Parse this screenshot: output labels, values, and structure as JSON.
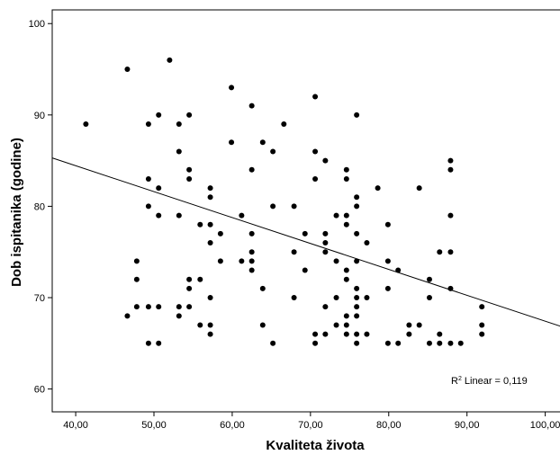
{
  "chart_data": {
    "type": "scatter",
    "title": "",
    "xlabel": "Kvaliteta života",
    "ylabel": "Dob ispitanika (godine)",
    "xlim": [
      37.0,
      102.0
    ],
    "ylim": [
      57.5,
      101.5
    ],
    "xticks": [
      40,
      50,
      60,
      70,
      80,
      90,
      100
    ],
    "xtick_labels": [
      "40,00",
      "50,00",
      "60,00",
      "70,00",
      "80,00",
      "90,00",
      "100,00"
    ],
    "yticks": [
      60,
      70,
      80,
      90,
      100
    ],
    "ytick_labels": [
      "60",
      "70",
      "80",
      "90",
      "100"
    ],
    "grid": false,
    "colors": {
      "points": "#000000",
      "line": "#000000",
      "axes": "#000000",
      "background": "#ffffff"
    },
    "fit_line": {
      "type": "linear",
      "intercept": 95.79,
      "slope": -0.2837
    },
    "annotation": {
      "r2_prefix": "R",
      "r2_sup": "2",
      "r2_text": " Linear = 0,119"
    },
    "points": [
      [
        41.3,
        89
      ],
      [
        46.6,
        95
      ],
      [
        46.6,
        68
      ],
      [
        47.8,
        74
      ],
      [
        47.8,
        72
      ],
      [
        47.8,
        69
      ],
      [
        49.3,
        89
      ],
      [
        49.3,
        83
      ],
      [
        49.3,
        80
      ],
      [
        49.3,
        69
      ],
      [
        49.3,
        65
      ],
      [
        50.6,
        90
      ],
      [
        50.6,
        82
      ],
      [
        50.6,
        79
      ],
      [
        50.6,
        69
      ],
      [
        50.6,
        65
      ],
      [
        52.0,
        96
      ],
      [
        53.2,
        89
      ],
      [
        53.2,
        86
      ],
      [
        53.2,
        79
      ],
      [
        53.2,
        69
      ],
      [
        53.2,
        68
      ],
      [
        54.5,
        90
      ],
      [
        54.5,
        84
      ],
      [
        54.5,
        83
      ],
      [
        54.5,
        72
      ],
      [
        54.5,
        71
      ],
      [
        54.5,
        69
      ],
      [
        55.9,
        78
      ],
      [
        55.9,
        72
      ],
      [
        55.9,
        67
      ],
      [
        57.2,
        82
      ],
      [
        57.2,
        81
      ],
      [
        57.2,
        78
      ],
      [
        57.2,
        76
      ],
      [
        57.2,
        70
      ],
      [
        57.2,
        67
      ],
      [
        57.2,
        66
      ],
      [
        58.5,
        77
      ],
      [
        58.5,
        74
      ],
      [
        59.9,
        93
      ],
      [
        59.9,
        87
      ],
      [
        61.2,
        79
      ],
      [
        61.2,
        74
      ],
      [
        62.5,
        91
      ],
      [
        62.5,
        84
      ],
      [
        62.5,
        77
      ],
      [
        62.5,
        75
      ],
      [
        62.5,
        74
      ],
      [
        62.5,
        73
      ],
      [
        63.9,
        87
      ],
      [
        63.9,
        71
      ],
      [
        63.9,
        67
      ],
      [
        65.2,
        86
      ],
      [
        65.2,
        80
      ],
      [
        65.2,
        65
      ],
      [
        66.6,
        89
      ],
      [
        67.9,
        80
      ],
      [
        67.9,
        75
      ],
      [
        67.9,
        70
      ],
      [
        69.3,
        77
      ],
      [
        69.3,
        73
      ],
      [
        70.6,
        92
      ],
      [
        70.6,
        86
      ],
      [
        70.6,
        83
      ],
      [
        70.6,
        66
      ],
      [
        70.6,
        65
      ],
      [
        71.9,
        85
      ],
      [
        71.9,
        77
      ],
      [
        71.9,
        76
      ],
      [
        71.9,
        75
      ],
      [
        71.9,
        69
      ],
      [
        71.9,
        66
      ],
      [
        73.3,
        79
      ],
      [
        73.3,
        74
      ],
      [
        73.3,
        70
      ],
      [
        73.3,
        67
      ],
      [
        74.6,
        84
      ],
      [
        74.6,
        83
      ],
      [
        74.6,
        79
      ],
      [
        74.6,
        78
      ],
      [
        74.6,
        73
      ],
      [
        74.6,
        72
      ],
      [
        74.6,
        68
      ],
      [
        74.6,
        67
      ],
      [
        74.6,
        66
      ],
      [
        75.9,
        90
      ],
      [
        75.9,
        81
      ],
      [
        75.9,
        80
      ],
      [
        75.9,
        77
      ],
      [
        75.9,
        74
      ],
      [
        75.9,
        71
      ],
      [
        75.9,
        70
      ],
      [
        75.9,
        69
      ],
      [
        75.9,
        68
      ],
      [
        75.9,
        66
      ],
      [
        75.9,
        65
      ],
      [
        77.2,
        76
      ],
      [
        77.2,
        70
      ],
      [
        77.2,
        66
      ],
      [
        78.6,
        82
      ],
      [
        79.9,
        78
      ],
      [
        79.9,
        74
      ],
      [
        79.9,
        71
      ],
      [
        79.9,
        65
      ],
      [
        81.2,
        73
      ],
      [
        81.2,
        65
      ],
      [
        82.6,
        67
      ],
      [
        82.6,
        66
      ],
      [
        83.9,
        82
      ],
      [
        83.9,
        67
      ],
      [
        85.2,
        72
      ],
      [
        85.2,
        70
      ],
      [
        85.2,
        65
      ],
      [
        86.5,
        75
      ],
      [
        86.5,
        66
      ],
      [
        86.5,
        65
      ],
      [
        87.9,
        85
      ],
      [
        87.9,
        84
      ],
      [
        87.9,
        79
      ],
      [
        87.9,
        75
      ],
      [
        87.9,
        71
      ],
      [
        87.9,
        65
      ],
      [
        89.2,
        65
      ],
      [
        91.9,
        69
      ],
      [
        91.9,
        67
      ],
      [
        91.9,
        66
      ]
    ]
  }
}
